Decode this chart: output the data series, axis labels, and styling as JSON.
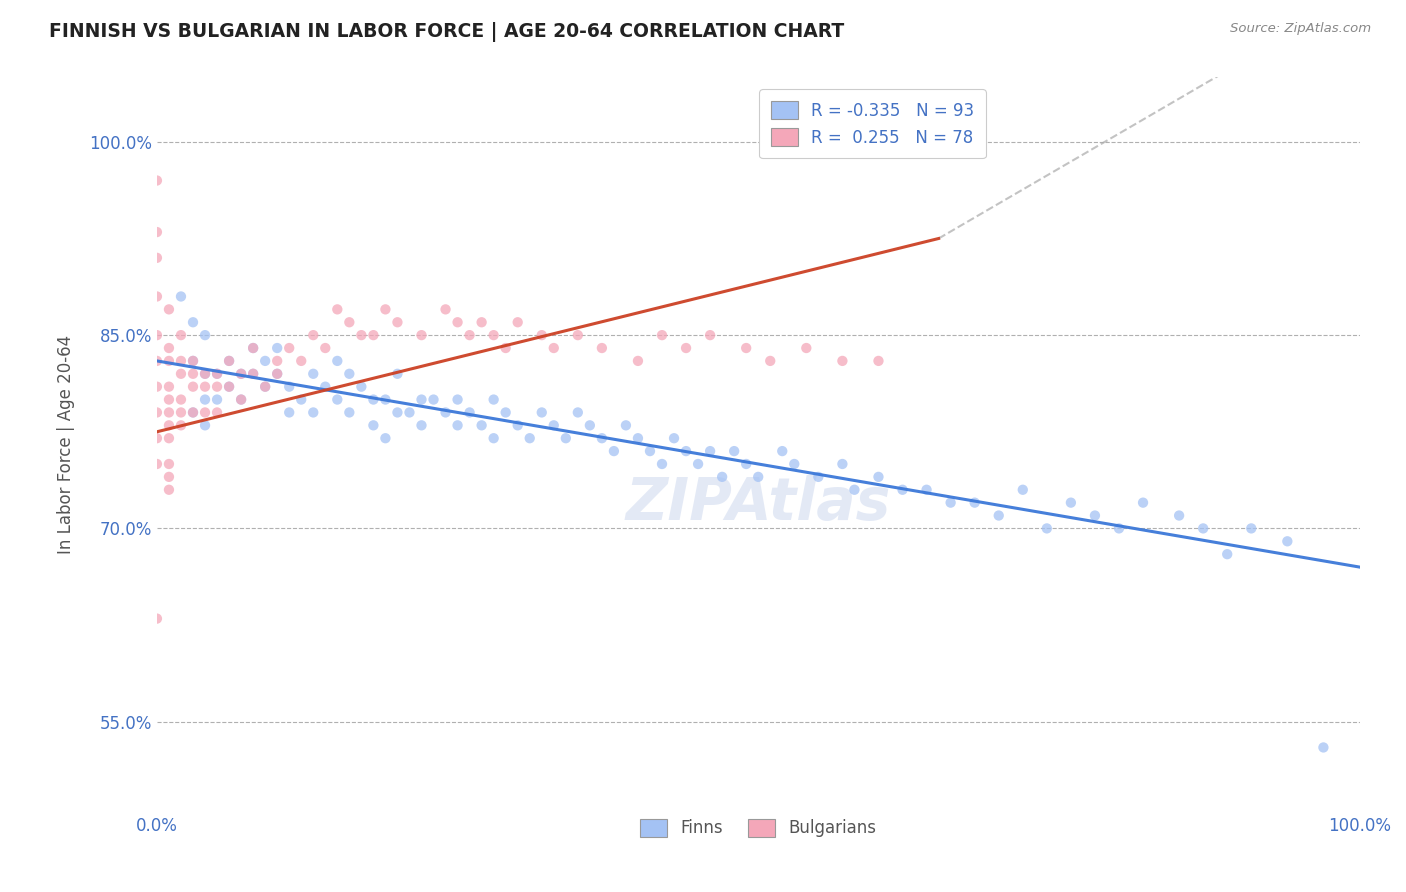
{
  "title": "FINNISH VS BULGARIAN IN LABOR FORCE | AGE 20-64 CORRELATION CHART",
  "source_text": "Source: ZipAtlas.com",
  "ylabel": "In Labor Force | Age 20-64",
  "xlim": [
    0.0,
    1.0
  ],
  "ylim": [
    0.48,
    1.05
  ],
  "x_ticks": [
    0.0,
    1.0
  ],
  "x_tick_labels": [
    "0.0%",
    "100.0%"
  ],
  "y_ticks": [
    0.55,
    0.7,
    0.85,
    1.0
  ],
  "y_tick_labels": [
    "55.0%",
    "70.0%",
    "85.0%",
    "100.0%"
  ],
  "finn_R": "-0.335",
  "finn_N": "93",
  "bulg_R": "0.255",
  "bulg_N": "78",
  "finn_color": "#a4c2f4",
  "bulg_color": "#f4a7b9",
  "finn_line_color": "#3c78d8",
  "bulg_line_color": "#cc4125",
  "background_color": "#ffffff",
  "grid_color": "#b0b0b0",
  "legend_label_finn": "Finns",
  "legend_label_bulg": "Bulgarians",
  "watermark": "ZIPAtlas",
  "finn_x": [
    0.02,
    0.03,
    0.03,
    0.03,
    0.04,
    0.04,
    0.04,
    0.04,
    0.05,
    0.05,
    0.06,
    0.06,
    0.07,
    0.07,
    0.08,
    0.08,
    0.09,
    0.09,
    0.1,
    0.1,
    0.11,
    0.11,
    0.12,
    0.13,
    0.13,
    0.14,
    0.15,
    0.15,
    0.16,
    0.16,
    0.17,
    0.18,
    0.18,
    0.19,
    0.19,
    0.2,
    0.2,
    0.21,
    0.22,
    0.22,
    0.23,
    0.24,
    0.25,
    0.25,
    0.26,
    0.27,
    0.28,
    0.28,
    0.29,
    0.3,
    0.31,
    0.32,
    0.33,
    0.34,
    0.35,
    0.36,
    0.37,
    0.38,
    0.39,
    0.4,
    0.41,
    0.42,
    0.43,
    0.44,
    0.45,
    0.46,
    0.47,
    0.48,
    0.49,
    0.5,
    0.52,
    0.53,
    0.55,
    0.57,
    0.58,
    0.6,
    0.62,
    0.64,
    0.66,
    0.68,
    0.7,
    0.72,
    0.74,
    0.76,
    0.78,
    0.8,
    0.82,
    0.85,
    0.87,
    0.89,
    0.91,
    0.94,
    0.97
  ],
  "finn_y": [
    0.88,
    0.86,
    0.83,
    0.79,
    0.85,
    0.82,
    0.8,
    0.78,
    0.82,
    0.8,
    0.83,
    0.81,
    0.82,
    0.8,
    0.84,
    0.82,
    0.83,
    0.81,
    0.84,
    0.82,
    0.81,
    0.79,
    0.8,
    0.82,
    0.79,
    0.81,
    0.83,
    0.8,
    0.82,
    0.79,
    0.81,
    0.8,
    0.78,
    0.8,
    0.77,
    0.82,
    0.79,
    0.79,
    0.8,
    0.78,
    0.8,
    0.79,
    0.8,
    0.78,
    0.79,
    0.78,
    0.8,
    0.77,
    0.79,
    0.78,
    0.77,
    0.79,
    0.78,
    0.77,
    0.79,
    0.78,
    0.77,
    0.76,
    0.78,
    0.77,
    0.76,
    0.75,
    0.77,
    0.76,
    0.75,
    0.76,
    0.74,
    0.76,
    0.75,
    0.74,
    0.76,
    0.75,
    0.74,
    0.75,
    0.73,
    0.74,
    0.73,
    0.73,
    0.72,
    0.72,
    0.71,
    0.73,
    0.7,
    0.72,
    0.71,
    0.7,
    0.72,
    0.71,
    0.7,
    0.68,
    0.7,
    0.69,
    0.53
  ],
  "bulg_x": [
    0.0,
    0.0,
    0.0,
    0.0,
    0.0,
    0.0,
    0.0,
    0.0,
    0.0,
    0.0,
    0.0,
    0.01,
    0.01,
    0.01,
    0.01,
    0.01,
    0.01,
    0.01,
    0.01,
    0.01,
    0.01,
    0.01,
    0.02,
    0.02,
    0.02,
    0.02,
    0.02,
    0.02,
    0.03,
    0.03,
    0.03,
    0.03,
    0.04,
    0.04,
    0.04,
    0.05,
    0.05,
    0.05,
    0.06,
    0.06,
    0.07,
    0.07,
    0.08,
    0.08,
    0.09,
    0.1,
    0.1,
    0.11,
    0.12,
    0.13,
    0.14,
    0.15,
    0.16,
    0.17,
    0.18,
    0.19,
    0.2,
    0.22,
    0.24,
    0.25,
    0.26,
    0.27,
    0.28,
    0.29,
    0.3,
    0.32,
    0.33,
    0.35,
    0.37,
    0.4,
    0.42,
    0.44,
    0.46,
    0.49,
    0.51,
    0.54,
    0.57,
    0.6
  ],
  "bulg_y": [
    0.97,
    0.93,
    0.91,
    0.88,
    0.85,
    0.83,
    0.81,
    0.79,
    0.77,
    0.75,
    0.63,
    0.87,
    0.84,
    0.83,
    0.81,
    0.8,
    0.79,
    0.78,
    0.77,
    0.75,
    0.74,
    0.73,
    0.85,
    0.83,
    0.82,
    0.8,
    0.79,
    0.78,
    0.83,
    0.82,
    0.81,
    0.79,
    0.82,
    0.81,
    0.79,
    0.82,
    0.81,
    0.79,
    0.83,
    0.81,
    0.82,
    0.8,
    0.84,
    0.82,
    0.81,
    0.83,
    0.82,
    0.84,
    0.83,
    0.85,
    0.84,
    0.87,
    0.86,
    0.85,
    0.85,
    0.87,
    0.86,
    0.85,
    0.87,
    0.86,
    0.85,
    0.86,
    0.85,
    0.84,
    0.86,
    0.85,
    0.84,
    0.85,
    0.84,
    0.83,
    0.85,
    0.84,
    0.85,
    0.84,
    0.83,
    0.84,
    0.83,
    0.83
  ]
}
